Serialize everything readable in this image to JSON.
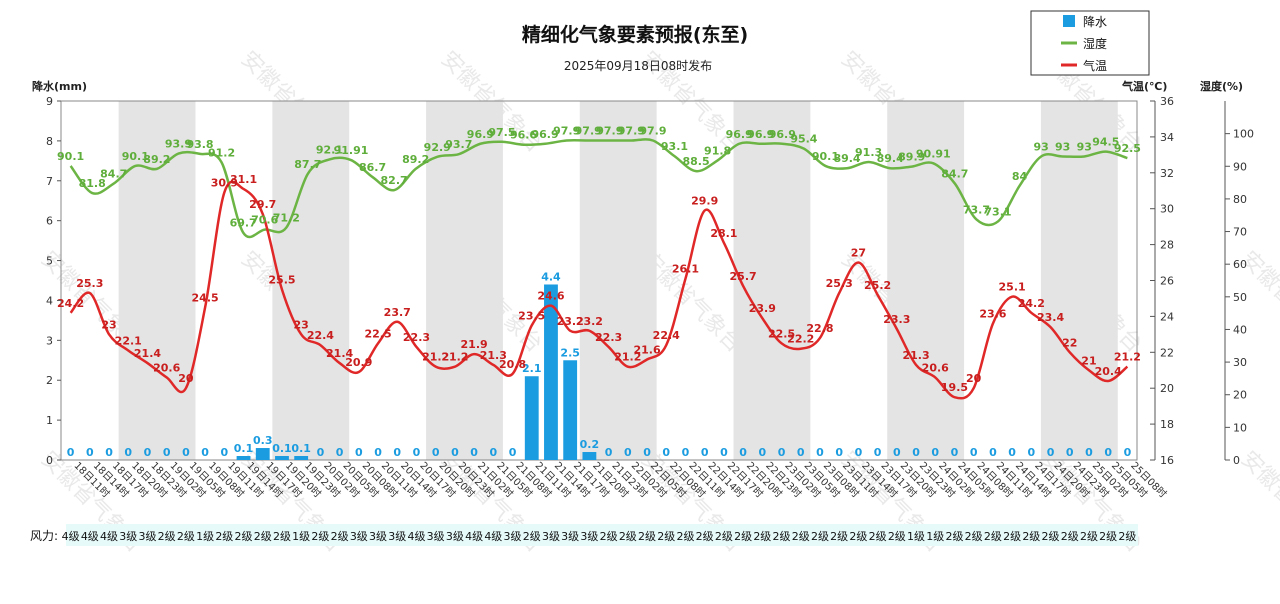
{
  "chart_data": {
    "type": "bar+line",
    "title": "精细化气象要素预报(东至)",
    "subtitle": "2025年09月18日08时发布",
    "left_axis_label": "降水(mm)",
    "temp_axis_label": "气温(℃)",
    "hum_axis_label": "湿度(%)",
    "legend": [
      "降水",
      "湿度",
      "气温"
    ],
    "wind_label": "风力:",
    "watermark": "安徽省气象台",
    "ylim_precip": [
      0,
      9
    ],
    "ylim_temp": [
      16,
      36
    ],
    "ylim_hum": [
      0,
      110
    ],
    "precip_ticks": [
      0,
      1,
      2,
      3,
      4,
      5,
      6,
      7,
      8,
      9
    ],
    "temp_ticks": [
      16,
      18,
      20,
      22,
      24,
      26,
      28,
      30,
      32,
      34,
      36
    ],
    "hum_ticks": [
      0,
      10,
      20,
      30,
      40,
      50,
      60,
      70,
      80,
      90,
      100
    ],
    "colors": {
      "precip": "#1b9ce0",
      "humidity": "#6cb545",
      "temperature": "#e02828",
      "night_band": "#e4e4e4"
    },
    "categories": [
      "18日11时",
      "18日14时",
      "18日17时",
      "18日20时",
      "18日23时",
      "19日02时",
      "19日05时",
      "19日08时",
      "19日11时",
      "19日14时",
      "19日17时",
      "19日20时",
      "19日23时",
      "20日02时",
      "20日05时",
      "20日08时",
      "20日11时",
      "20日14时",
      "20日17时",
      "20日20时",
      "20日23时",
      "21日02时",
      "21日05时",
      "21日08时",
      "21日11时",
      "21日14时",
      "21日17时",
      "21日20时",
      "21日23时",
      "22日02时",
      "22日05时",
      "22日08时",
      "22日11时",
      "22日14时",
      "22日17时",
      "22日20时",
      "22日23时",
      "23日02时",
      "23日05时",
      "23日08时",
      "23日11时",
      "23日14时",
      "23日17时",
      "23日20时",
      "23日23时",
      "24日02时",
      "24日05时",
      "24日08时",
      "24日11时",
      "24日14时",
      "24日17时",
      "24日20时",
      "24日23时",
      "25日02时",
      "25日05时",
      "25日08时"
    ],
    "precipitation": [
      0,
      0,
      0,
      0,
      0,
      0,
      0,
      0,
      0,
      0.1,
      0.3,
      0.1,
      0.1,
      0,
      0,
      0,
      0,
      0,
      0,
      0,
      0,
      0,
      0,
      0,
      2.1,
      4.4,
      2.5,
      0.2,
      0,
      0,
      0,
      0,
      0,
      0,
      0,
      0,
      0,
      0,
      0,
      0,
      0,
      0,
      0,
      0,
      0,
      0,
      0,
      0,
      0,
      0,
      0,
      0,
      0,
      0,
      0,
      0
    ],
    "humidity": [
      90.1,
      81.8,
      84.7,
      90.1,
      89.2,
      93.9,
      93.8,
      91.2,
      69.7,
      70.6,
      71.2,
      87.7,
      92.1,
      91.91,
      86.7,
      82.7,
      89.2,
      92.9,
      93.7,
      96.9,
      97.5,
      96.6,
      96.9,
      97.9,
      97.9,
      97.9,
      97.9,
      97.9,
      93.1,
      88.5,
      91.8,
      96.9,
      96.9,
      96.9,
      95.4,
      90.1,
      89.4,
      91.3,
      89.4,
      89.9,
      90.91,
      84.7,
      73.7,
      73.1,
      84.0,
      93.0,
      93.0,
      93.0,
      94.5,
      92.5
    ],
    "humidity_x_index": [
      0,
      1,
      2,
      3,
      4,
      5,
      6,
      7,
      8,
      9,
      10,
      11,
      12,
      13,
      14,
      15,
      16,
      17,
      18,
      19,
      20,
      21,
      22,
      23,
      24,
      25,
      26,
      27,
      28,
      29,
      30,
      31,
      32,
      33,
      34,
      35,
      36,
      37,
      38,
      39,
      40,
      41,
      42,
      43,
      44,
      45,
      46,
      47,
      48,
      49
    ],
    "temperature": [
      24.2,
      25.3,
      23,
      22.1,
      21.4,
      20.6,
      20,
      24.5,
      30.9,
      31.1,
      29.7,
      25.5,
      23,
      22.4,
      21.4,
      20.9,
      22.5,
      23.7,
      22.3,
      21.2,
      21.2,
      21.9,
      21.3,
      20.8,
      23.5,
      24.6,
      23.2,
      23.2,
      22.3,
      21.2,
      21.6,
      22.4,
      26.1,
      29.9,
      28.1,
      25.7,
      23.9,
      22.5,
      22.2,
      22.8,
      25.3,
      27,
      25.2,
      23.3,
      21.3,
      20.6,
      19.5,
      20,
      23.6,
      25.1,
      24.2,
      23.4,
      22,
      21,
      20.4,
      21.2
    ],
    "night_band_starts": [
      3,
      11,
      19,
      27,
      35,
      43,
      51
    ],
    "wind": [
      "4级",
      "4级",
      "4级",
      "3级",
      "3级",
      "2级",
      "2级",
      "1级",
      "2级",
      "2级",
      "2级",
      "2级",
      "1级",
      "2级",
      "2级",
      "3级",
      "3级",
      "3级",
      "4级",
      "3级",
      "3级",
      "4级",
      "4级",
      "3级",
      "2级",
      "3级",
      "3级",
      "3级",
      "2级",
      "2级",
      "2级",
      "2级",
      "2级",
      "2级",
      "2级",
      "2级",
      "2级",
      "2级",
      "2级",
      "2级",
      "2级",
      "2级",
      "2级",
      "2级",
      "1级",
      "1级",
      "2级",
      "2级",
      "2级",
      "2级",
      "2级",
      "2级",
      "2级",
      "2级",
      "2级",
      "2级"
    ]
  }
}
